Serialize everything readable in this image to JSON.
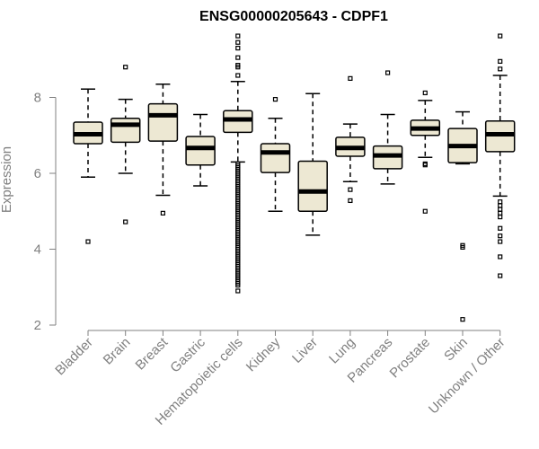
{
  "chart_data": {
    "type": "boxplot",
    "title": "ENSG00000205643 - CDPF1",
    "ylabel": "Expression",
    "xlabel": "",
    "ylim": [
      2,
      9.8
    ],
    "yticks": [
      2,
      4,
      6,
      8
    ],
    "grid": false,
    "colors": {
      "box_fill": "#ede8d3",
      "stroke": "#000000",
      "axis": "#808080"
    },
    "categories": [
      "Bladder",
      "Brain",
      "Breast",
      "Gastric",
      "Hematopoietic cells",
      "Kidney",
      "Liver",
      "Lung",
      "Pancreas",
      "Prostate",
      "Skin",
      "Unknown / Other"
    ],
    "series": [
      {
        "category": "Bladder",
        "whisker_low": 5.9,
        "q1": 6.78,
        "median": 7.03,
        "q3": 7.35,
        "whisker_high": 8.22,
        "outliers": [
          4.2
        ]
      },
      {
        "category": "Brain",
        "whisker_low": 6.0,
        "q1": 6.82,
        "median": 7.28,
        "q3": 7.45,
        "whisker_high": 7.95,
        "outliers": [
          8.8,
          4.72
        ]
      },
      {
        "category": "Breast",
        "whisker_low": 5.42,
        "q1": 6.85,
        "median": 7.53,
        "q3": 7.83,
        "whisker_high": 8.35,
        "outliers": [
          4.95
        ]
      },
      {
        "category": "Gastric",
        "whisker_low": 5.67,
        "q1": 6.22,
        "median": 6.67,
        "q3": 6.97,
        "whisker_high": 7.55,
        "outliers": []
      },
      {
        "category": "Hematopoietic cells",
        "whisker_low": 6.3,
        "q1": 7.08,
        "median": 7.42,
        "q3": 7.65,
        "whisker_high": 8.42,
        "outliers": [
          9.62,
          9.45,
          9.3,
          9.05,
          8.85,
          8.8,
          8.58,
          6.25,
          6.2,
          6.15,
          6.1,
          6.05,
          6.0,
          5.95,
          5.9,
          5.85,
          5.8,
          5.75,
          5.7,
          5.65,
          5.6,
          5.55,
          5.5,
          5.45,
          5.4,
          5.35,
          5.3,
          5.25,
          5.2,
          5.15,
          5.1,
          5.05,
          5.0,
          4.95,
          4.9,
          4.85,
          4.8,
          4.75,
          4.7,
          4.65,
          4.6,
          4.55,
          4.5,
          4.45,
          4.4,
          4.35,
          4.3,
          4.25,
          4.2,
          4.15,
          4.1,
          4.05,
          4.0,
          3.95,
          3.9,
          3.85,
          3.8,
          3.75,
          3.7,
          3.65,
          3.6,
          3.55,
          3.5,
          3.45,
          3.4,
          3.35,
          3.3,
          3.25,
          3.2,
          3.15,
          3.1,
          3.05,
          2.9
        ]
      },
      {
        "category": "Kidney",
        "whisker_low": 5.0,
        "q1": 6.02,
        "median": 6.55,
        "q3": 6.78,
        "whisker_high": 7.45,
        "outliers": [
          7.95
        ]
      },
      {
        "category": "Liver",
        "whisker_low": 4.37,
        "q1": 5.0,
        "median": 5.52,
        "q3": 6.32,
        "whisker_high": 8.1,
        "outliers": []
      },
      {
        "category": "Lung",
        "whisker_low": 5.78,
        "q1": 6.45,
        "median": 6.67,
        "q3": 6.95,
        "whisker_high": 7.3,
        "outliers": [
          8.5,
          5.57,
          5.28
        ]
      },
      {
        "category": "Pancreas",
        "whisker_low": 5.72,
        "q1": 6.12,
        "median": 6.47,
        "q3": 6.72,
        "whisker_high": 7.55,
        "outliers": [
          8.65
        ]
      },
      {
        "category": "Prostate",
        "whisker_low": 6.42,
        "q1": 7.0,
        "median": 7.18,
        "q3": 7.4,
        "whisker_high": 7.92,
        "outliers": [
          8.12,
          6.25,
          6.22,
          5.0
        ]
      },
      {
        "category": "Skin",
        "whisker_low": 6.25,
        "q1": 6.28,
        "median": 6.72,
        "q3": 7.18,
        "whisker_high": 7.62,
        "outliers": [
          4.1,
          4.05,
          2.15
        ]
      },
      {
        "category": "Unknown / Other",
        "whisker_low": 5.4,
        "q1": 6.57,
        "median": 7.03,
        "q3": 7.38,
        "whisker_high": 8.58,
        "outliers": [
          9.62,
          8.95,
          8.75,
          5.25,
          5.15,
          5.05,
          4.95,
          4.85,
          4.55,
          4.35,
          4.2,
          3.8,
          3.3
        ]
      }
    ]
  }
}
